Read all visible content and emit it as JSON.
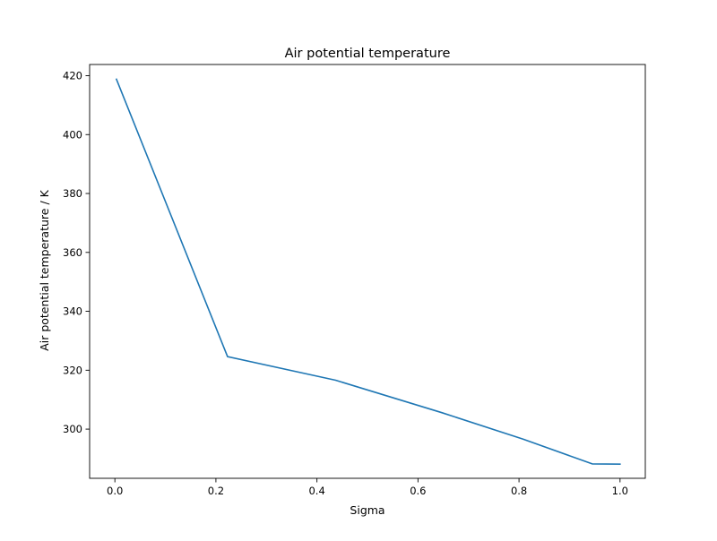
{
  "chart_data": {
    "type": "line",
    "title": "Air potential temperature",
    "xlabel": "Sigma",
    "ylabel": "Air potential temperature / K",
    "xlim": [
      -0.05,
      1.05
    ],
    "ylim": [
      283.3,
      423.8
    ],
    "xticks": [
      0.0,
      0.2,
      0.4,
      0.6,
      0.8,
      1.0
    ],
    "xtick_labels": [
      "0.0",
      "0.2",
      "0.4",
      "0.6",
      "0.8",
      "1.0"
    ],
    "yticks": [
      300,
      320,
      340,
      360,
      380,
      400,
      420
    ],
    "ytick_labels": [
      "300",
      "320",
      "340",
      "360",
      "380",
      "400",
      "420"
    ],
    "grid": false,
    "series": [
      {
        "color": "#1f77b4",
        "x": [
          0.003,
          0.223,
          0.437,
          0.647,
          0.808,
          0.945,
          1.0
        ],
        "y": [
          418.8,
          324.6,
          316.6,
          305.6,
          296.6,
          288.2,
          288.1
        ]
      }
    ]
  }
}
